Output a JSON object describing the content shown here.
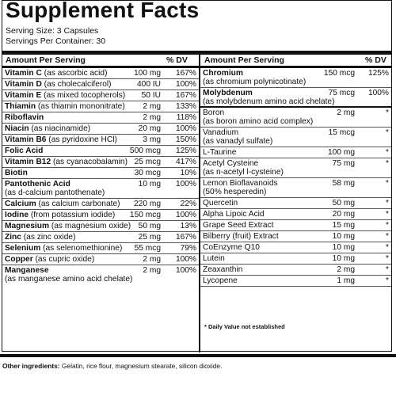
{
  "title": "Supplement Facts",
  "serving_size": "Serving Size: 3 Capsules",
  "servings_per_container": "Servings Per Container: 30",
  "header": {
    "amount_per_serving": "Amount Per Serving",
    "dv": "% DV"
  },
  "left": [
    {
      "name": "Vitamin C",
      "sub": " (as ascorbic acid)",
      "amount": "100 mg",
      "dv": "167%"
    },
    {
      "name": "Vitamin D",
      "sub": " (as cholecalciferol)",
      "amount": "400 IU",
      "dv": "100%"
    },
    {
      "name": "Vitamin E",
      "sub": " (as mixed tocopherols)",
      "amount": "50 IU",
      "dv": "167%"
    },
    {
      "name": "Thiamin",
      "sub": " (as thiamin mononitrate)",
      "amount": "2 mg",
      "dv": "133%"
    },
    {
      "name": "Riboflavin",
      "sub": "",
      "amount": "2 mg",
      "dv": "118%"
    },
    {
      "name": "Niacin",
      "sub": " (as niacinamide)",
      "amount": "20 mg",
      "dv": "100%"
    },
    {
      "name": "Vitamin B6",
      "sub": " (as pyridoxine HCl)",
      "amount": "3 mg",
      "dv": "150%"
    },
    {
      "name": "Folic Acid",
      "sub": "",
      "amount": "500 mcg",
      "dv": "125%"
    },
    {
      "name": "Vitamin B12",
      "sub": " (as cyanacobalamin)",
      "amount": "25 mcg",
      "dv": "417%"
    },
    {
      "name": "Biotin",
      "sub": "",
      "amount": "30 mcg",
      "dv": "10%"
    },
    {
      "name": "Pantothenic Acid",
      "sub2": "(as d-calcium pantothenate)",
      "amount": "10 mg",
      "dv": "100%"
    },
    {
      "name": "Calcium",
      "sub": " (as calcium carbonate)",
      "amount": "220 mg",
      "dv": "22%"
    },
    {
      "name": "Iodine",
      "sub": " (from potassium iodide)",
      "amount": "150 mcg",
      "dv": "100%"
    },
    {
      "name": "Magnesium",
      "sub": " (as magnesium oxide)",
      "amount": "50 mg",
      "dv": "13%"
    },
    {
      "name": "Zinc",
      "sub": " (as zinc oxide)",
      "amount": "25 mg",
      "dv": "167%"
    },
    {
      "name": "Selenium",
      "sub": " (as selenomethionine)",
      "amount": "55 mcg",
      "dv": "79%"
    },
    {
      "name": "Copper",
      "sub": " (as cupric oxide)",
      "amount": "2 mg",
      "dv": "100%"
    },
    {
      "name": "Manganese",
      "sub2": "(as manganese amino acid chelate)",
      "amount": "2 mg",
      "dv": "100%"
    }
  ],
  "right_top": [
    {
      "name": "Chromium",
      "sub2": "(as chromium polynicotinate)",
      "amount": "150 mcg",
      "dv": "125%"
    },
    {
      "name": "Molybdenum",
      "sub2": "(as molybdenum amino acid chelate)",
      "amount": "75 mcg",
      "dv": "100%"
    }
  ],
  "right_bottom": [
    {
      "name": "Boron",
      "sub2": "(as boron amino acid complex)",
      "amount": "2 mg",
      "dv": "*"
    },
    {
      "name": "Vanadium",
      "sub2": "(as vanadyl sulfate)",
      "amount": "15 mcg",
      "dv": "*"
    },
    {
      "name": "L-Taurine",
      "amount": "100 mg",
      "dv": "*"
    },
    {
      "name": "Acetyl Cysteine",
      "sub2": "(as n-acetyl l-cysteine)",
      "amount": "75 mg",
      "dv": "*"
    },
    {
      "name": "Lemon Bioflavanoids",
      "sub2": "(50% hesperedin)",
      "amount": "58 mg",
      "dv": "*"
    },
    {
      "name": "Quercetin",
      "amount": "50 mg",
      "dv": "*"
    },
    {
      "name": "Alpha Lipoic Acid",
      "amount": "20 mg",
      "dv": "*"
    },
    {
      "name": "Grape Seed Extract",
      "amount": "15 mg",
      "dv": "*"
    },
    {
      "name": "Bilberry (fruit) Extract",
      "amount": "10 mg",
      "dv": "*"
    },
    {
      "name": "CoEnzyme Q10",
      "amount": "10 mg",
      "dv": "*"
    },
    {
      "name": "Lutein",
      "amount": "10 mg",
      "dv": "*"
    },
    {
      "name": "Zeaxanthin",
      "amount": "2 mg",
      "dv": "*"
    },
    {
      "name": "Lycopene",
      "amount": "1 mg",
      "dv": "*"
    }
  ],
  "footnote": "* Daily Value not established",
  "other_label": "Other ingredients:",
  "other_text": " Gelatin, rice flour, magnesium stearate, silicon dioxide."
}
